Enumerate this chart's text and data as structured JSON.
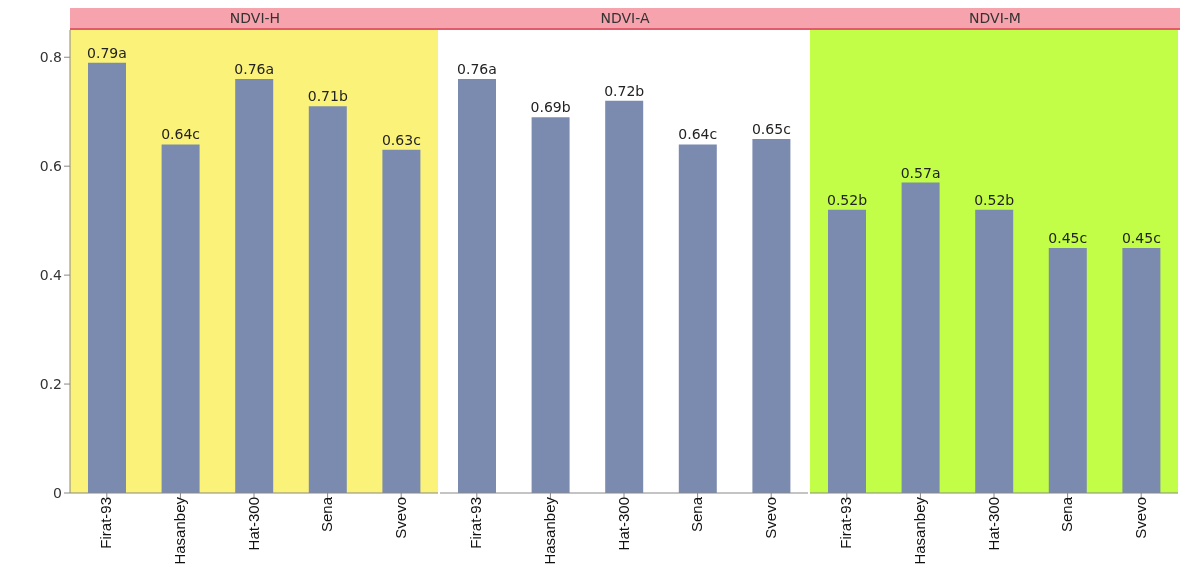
{
  "chart_data": [
    {
      "type": "bar",
      "title": "NDVI-H",
      "categories": [
        "Firat-93",
        "Hasanbey",
        "Hat-300",
        "Sena",
        "Svevo"
      ],
      "values": [
        0.79,
        0.64,
        0.76,
        0.71,
        0.63
      ],
      "value_labels": [
        "0.79a",
        "0.64c",
        "0.76a",
        "0.71b",
        "0.63c"
      ],
      "color": "#7b8bb0",
      "ylim": [
        0,
        0.85
      ],
      "yticks": [
        0,
        0.2,
        0.4,
        0.6,
        0.8
      ]
    },
    {
      "type": "bar",
      "title": "NDVI-A",
      "categories": [
        "Firat-93",
        "Hasanbey",
        "Hat-300",
        "Sena",
        "Svevo"
      ],
      "values": [
        0.76,
        0.69,
        0.72,
        0.64,
        0.65
      ],
      "value_labels": [
        "0.76a",
        "0.69b",
        "0.72b",
        "0.64c",
        "0.65c"
      ],
      "color": "#7b8bb0",
      "ylim": [
        0,
        0.85
      ],
      "yticks": [
        0,
        0.2,
        0.4,
        0.6,
        0.8
      ],
      "tick_labels": "x"
    },
    {
      "type": "bar",
      "title": "NDVI-M",
      "categories": [
        "Firat-93",
        "Hasanbey",
        "Hat-300",
        "Sena",
        "Svevo"
      ],
      "values": [
        0.52,
        0.57,
        0.52,
        0.45,
        0.45
      ],
      "value_labels": [
        "0.52b",
        "0.57a",
        "0.52b",
        "0.45c",
        "0.45c"
      ],
      "color": "#7b8bb0",
      "ylim": [
        0,
        0.85
      ],
      "yticks": [
        0,
        0.2,
        0.4,
        0.6,
        0.8
      ],
      "tick_labels": "x"
    }
  ]
}
